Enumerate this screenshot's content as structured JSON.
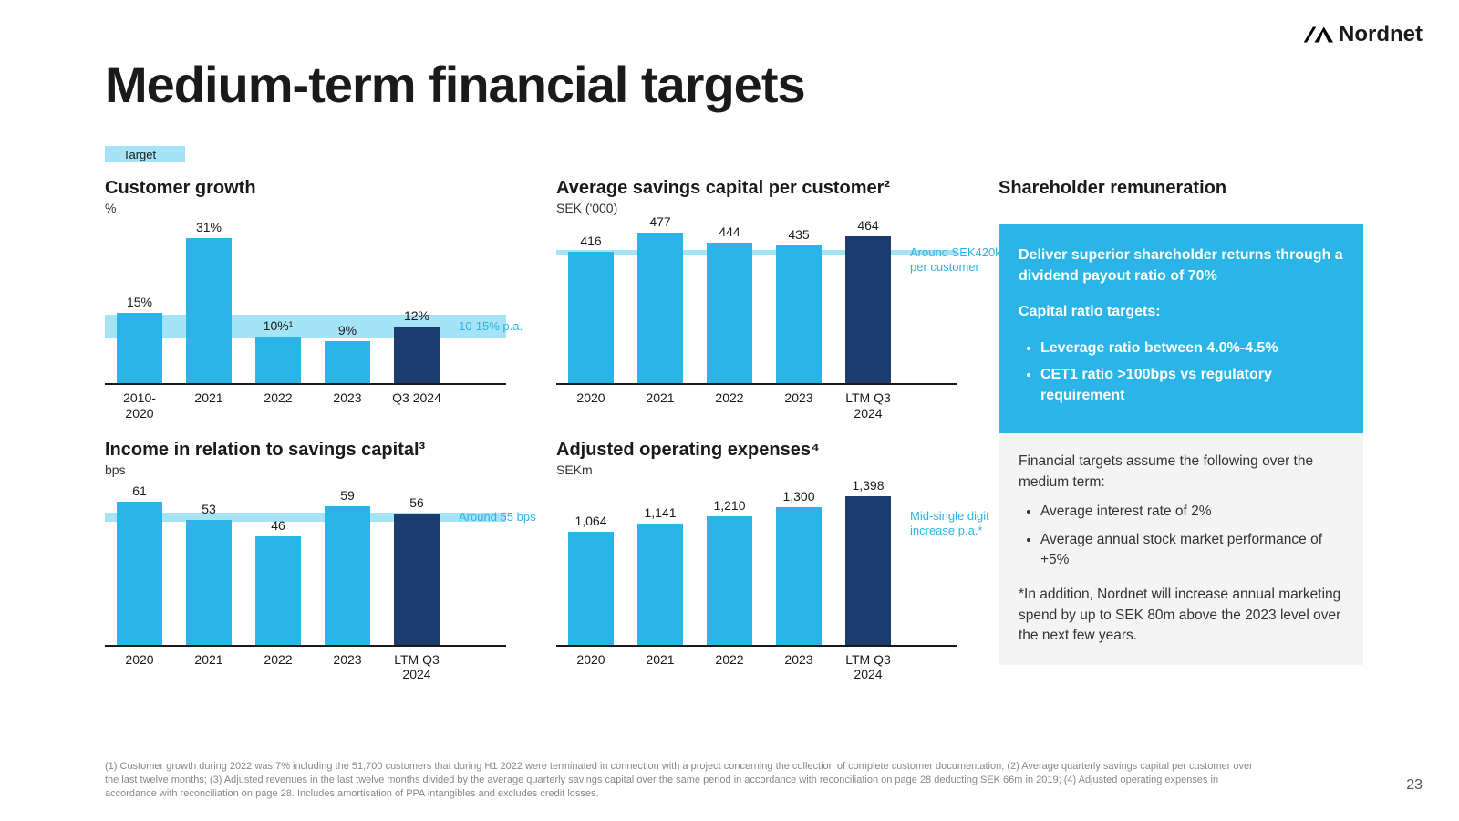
{
  "brand": "Nordnet",
  "title": "Medium-term financial targets",
  "legend_label": "Target",
  "colors": {
    "bar_primary": "#2bb4e8",
    "bar_dark": "#1c3b6e",
    "target_band": "#a5e3f7",
    "annot": "#2bb4e8",
    "axis": "#1a1a1a"
  },
  "charts": [
    {
      "title": "Customer growth",
      "subtitle": "%",
      "ymax": 35,
      "target_band": {
        "from": 10,
        "to": 15
      },
      "target_annot": "10-15% p.a.",
      "bars": [
        {
          "label": "2010-\n2020",
          "value": 15,
          "display": "15%",
          "color": "#2bb4e8"
        },
        {
          "label": "2021",
          "value": 31,
          "display": "31%",
          "color": "#2bb4e8"
        },
        {
          "label": "2022",
          "value": 10,
          "display": "10%¹",
          "color": "#2bb4e8"
        },
        {
          "label": "2023",
          "value": 9,
          "display": "9%",
          "color": "#2bb4e8"
        },
        {
          "label": "Q3 2024",
          "value": 12,
          "display": "12%",
          "color": "#1c3b6e"
        }
      ]
    },
    {
      "title": "Average savings capital per customer²",
      "subtitle": "SEK ('000)",
      "ymax": 520,
      "target_band": {
        "from": 412,
        "to": 428
      },
      "target_annot": "Around SEK420k per customer",
      "bars": [
        {
          "label": "2020",
          "value": 416,
          "display": "416",
          "color": "#2bb4e8"
        },
        {
          "label": "2021",
          "value": 477,
          "display": "477",
          "color": "#2bb4e8"
        },
        {
          "label": "2022",
          "value": 444,
          "display": "444",
          "color": "#2bb4e8"
        },
        {
          "label": "2023",
          "value": 435,
          "display": "435",
          "color": "#2bb4e8"
        },
        {
          "label": "LTM Q3\n2024",
          "value": 464,
          "display": "464",
          "color": "#1c3b6e"
        }
      ]
    },
    {
      "title": "Income in relation to savings capital³",
      "subtitle": "bps",
      "ymax": 70,
      "target_band": {
        "from": 53,
        "to": 57
      },
      "target_annot": "Around 55 bps",
      "bars": [
        {
          "label": "2020",
          "value": 61,
          "display": "61",
          "color": "#2bb4e8"
        },
        {
          "label": "2021",
          "value": 53,
          "display": "53",
          "color": "#2bb4e8"
        },
        {
          "label": "2022",
          "value": 46,
          "display": "46",
          "color": "#2bb4e8"
        },
        {
          "label": "2023",
          "value": 59,
          "display": "59",
          "color": "#2bb4e8"
        },
        {
          "label": "LTM Q3\n2024",
          "value": 56,
          "display": "56",
          "color": "#1c3b6e"
        }
      ]
    },
    {
      "title": "Adjusted operating expenses⁴",
      "subtitle": "SEKm",
      "ymax": 1550,
      "target_band": null,
      "target_annot": "Mid-single digit increase p.a.*",
      "bars": [
        {
          "label": "2020",
          "value": 1064,
          "display": "1,064",
          "color": "#2bb4e8"
        },
        {
          "label": "2021",
          "value": 1141,
          "display": "1,141",
          "color": "#2bb4e8"
        },
        {
          "label": "2022",
          "value": 1210,
          "display": "1,210",
          "color": "#2bb4e8"
        },
        {
          "label": "2023",
          "value": 1300,
          "display": "1,300",
          "color": "#2bb4e8"
        },
        {
          "label": "LTM Q3\n2024",
          "value": 1398,
          "display": "1,398",
          "color": "#1c3b6e"
        }
      ]
    }
  ],
  "right": {
    "title": "Shareholder remuneration",
    "blue_box": {
      "lead": "Deliver superior shareholder returns through a  dividend payout ratio of 70%",
      "subhead": "Capital ratio targets:",
      "bullets": [
        "Leverage ratio between 4.0%-4.5%",
        "CET1 ratio >100bps vs regulatory requirement"
      ]
    },
    "gray_box": {
      "lead": "Financial targets assume the following over the medium term:",
      "bullets": [
        "Average interest rate of 2%",
        "Average annual stock market performance of +5%"
      ],
      "note": "*In addition, Nordnet will increase annual marketing spend by up to SEK 80m above the 2023 level over the next few years."
    }
  },
  "footnotes": "(1) Customer growth during 2022 was 7% including the 51,700 customers that during H1 2022 were terminated in connection with a project concerning the collection of complete customer documentation; (2) Average quarterly savings capital per customer over the last twelve months; (3) Adjusted revenues in the last twelve months divided by the average quarterly savings capital over the same period in accordance with reconciliation on page 28 deducting SEK 66m in 2019; (4) Adjusted operating expenses in accordance with reconciliation on page 28. Includes amortisation of PPA intangibles and excludes credit losses.",
  "page_number": "23"
}
